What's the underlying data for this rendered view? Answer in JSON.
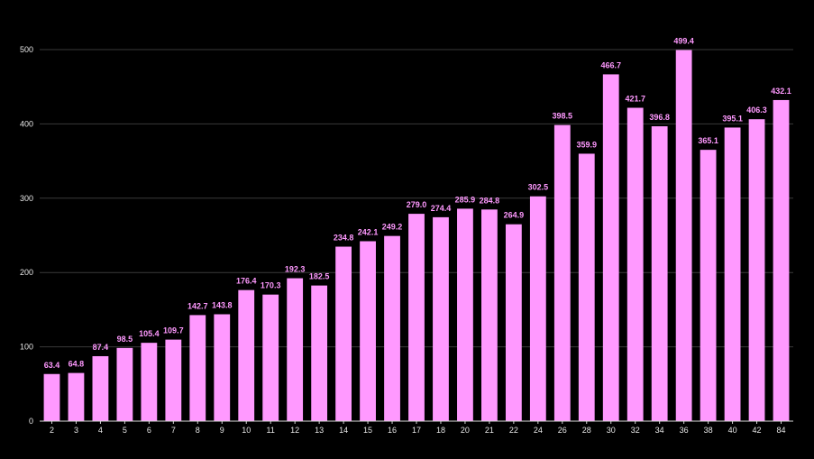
{
  "chart_data": {
    "type": "bar",
    "title": "",
    "xlabel": "",
    "ylabel": "",
    "categories": [
      "2",
      "3",
      "4",
      "5",
      "6",
      "7",
      "8",
      "9",
      "10",
      "11",
      "12",
      "13",
      "14",
      "15",
      "16",
      "17",
      "18",
      "20",
      "21",
      "22",
      "24",
      "26",
      "28",
      "30",
      "32",
      "34",
      "36",
      "38",
      "40",
      "42",
      "84"
    ],
    "values": [
      63.4,
      64.8,
      87.4,
      98.5,
      105.4,
      109.7,
      142.7,
      143.8,
      176.4,
      170.3,
      192.3,
      182.5,
      234.8,
      242.1,
      249.2,
      279.0,
      274.4,
      285.9,
      284.8,
      264.9,
      302.5,
      398.5,
      359.9,
      466.7,
      421.7,
      396.8,
      499.4,
      365.1,
      395.1,
      406.3,
      432.1
    ],
    "value_labels": [
      "63.4",
      "64.8",
      "87.4",
      "98.5",
      "105.4",
      "109.7",
      "142.7",
      "143.8",
      "176.4",
      "170.3",
      "192.3",
      "182.5",
      "234.8",
      "242.1",
      "249.2",
      "279.0",
      "274.4",
      "285.9",
      "284.8",
      "264.9",
      "302.5",
      "398.5",
      "359.9",
      "466.7",
      "421.7",
      "396.8",
      "499.4",
      "365.1",
      "395.1",
      "406.3",
      "432.1"
    ],
    "ylim": [
      0,
      500
    ],
    "yticks": [
      0,
      100,
      200,
      300,
      400,
      500
    ],
    "ytick_labels": [
      "0",
      "100",
      "200",
      "300",
      "400",
      "500"
    ],
    "grid": "horizontal",
    "legend": "none",
    "colors": {
      "background": "#000000",
      "bar": "#ff99ff",
      "data_label": "#ff99ff",
      "tick_label": "#e6e6e6",
      "grid": "#3a3a3a",
      "axis": "#d9d9d9"
    }
  }
}
